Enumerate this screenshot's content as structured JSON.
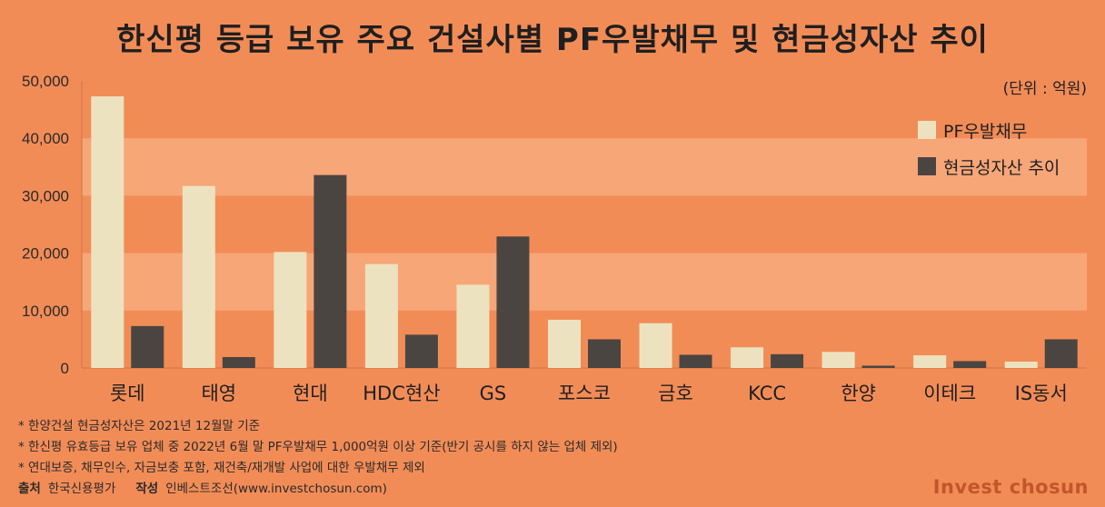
{
  "title": "한신평 등급 보유 주요 건설사별 PF우발채무 및 현금성자산 추이",
  "unit": "(단위 : 억원)",
  "colors": {
    "background": "#f28c57",
    "band_light": "#f7a678",
    "series1": "#ede2bf",
    "series2": "#4b4542",
    "brand": "#c2562a"
  },
  "chart_data": {
    "type": "bar",
    "categories": [
      "롯데",
      "태영",
      "현대",
      "HDC현산",
      "GS",
      "포스코",
      "금호",
      "KCC",
      "한양",
      "이테크",
      "IS동서"
    ],
    "series": [
      {
        "name": "PF우발채무",
        "values": [
          47300,
          31700,
          20200,
          18100,
          14500,
          8400,
          7800,
          3600,
          2800,
          2200,
          1100
        ]
      },
      {
        "name": "현금성자산 추이",
        "values": [
          7300,
          1900,
          33600,
          5800,
          22900,
          5000,
          2300,
          2400,
          400,
          1200,
          5000
        ]
      }
    ],
    "ylim": [
      0,
      50000
    ],
    "yticks": [
      "0",
      "10,000",
      "20,000",
      "30,000",
      "40,000",
      "50,000"
    ],
    "legend": "top-right",
    "grid": true
  },
  "notes": [
    "* 한양건설 현금성자산은 2021년 12월말 기준",
    "* 한신평 유효등급 보유 업체 중 2022년 6월 말 PF우발채무 1,000억원 이상 기준(반기 공시를 하지 않는 업체 제외)",
    "* 연대보증, 채무인수, 자금보충 포함, 재건축/재개발 사업에 대한 우발채무 제외"
  ],
  "credit": {
    "source_label": "출처",
    "source": "한국신용평가",
    "author_label": "작성",
    "author": "인베스트조선(www.investchosun.com)"
  },
  "brand": "Invest chosun"
}
